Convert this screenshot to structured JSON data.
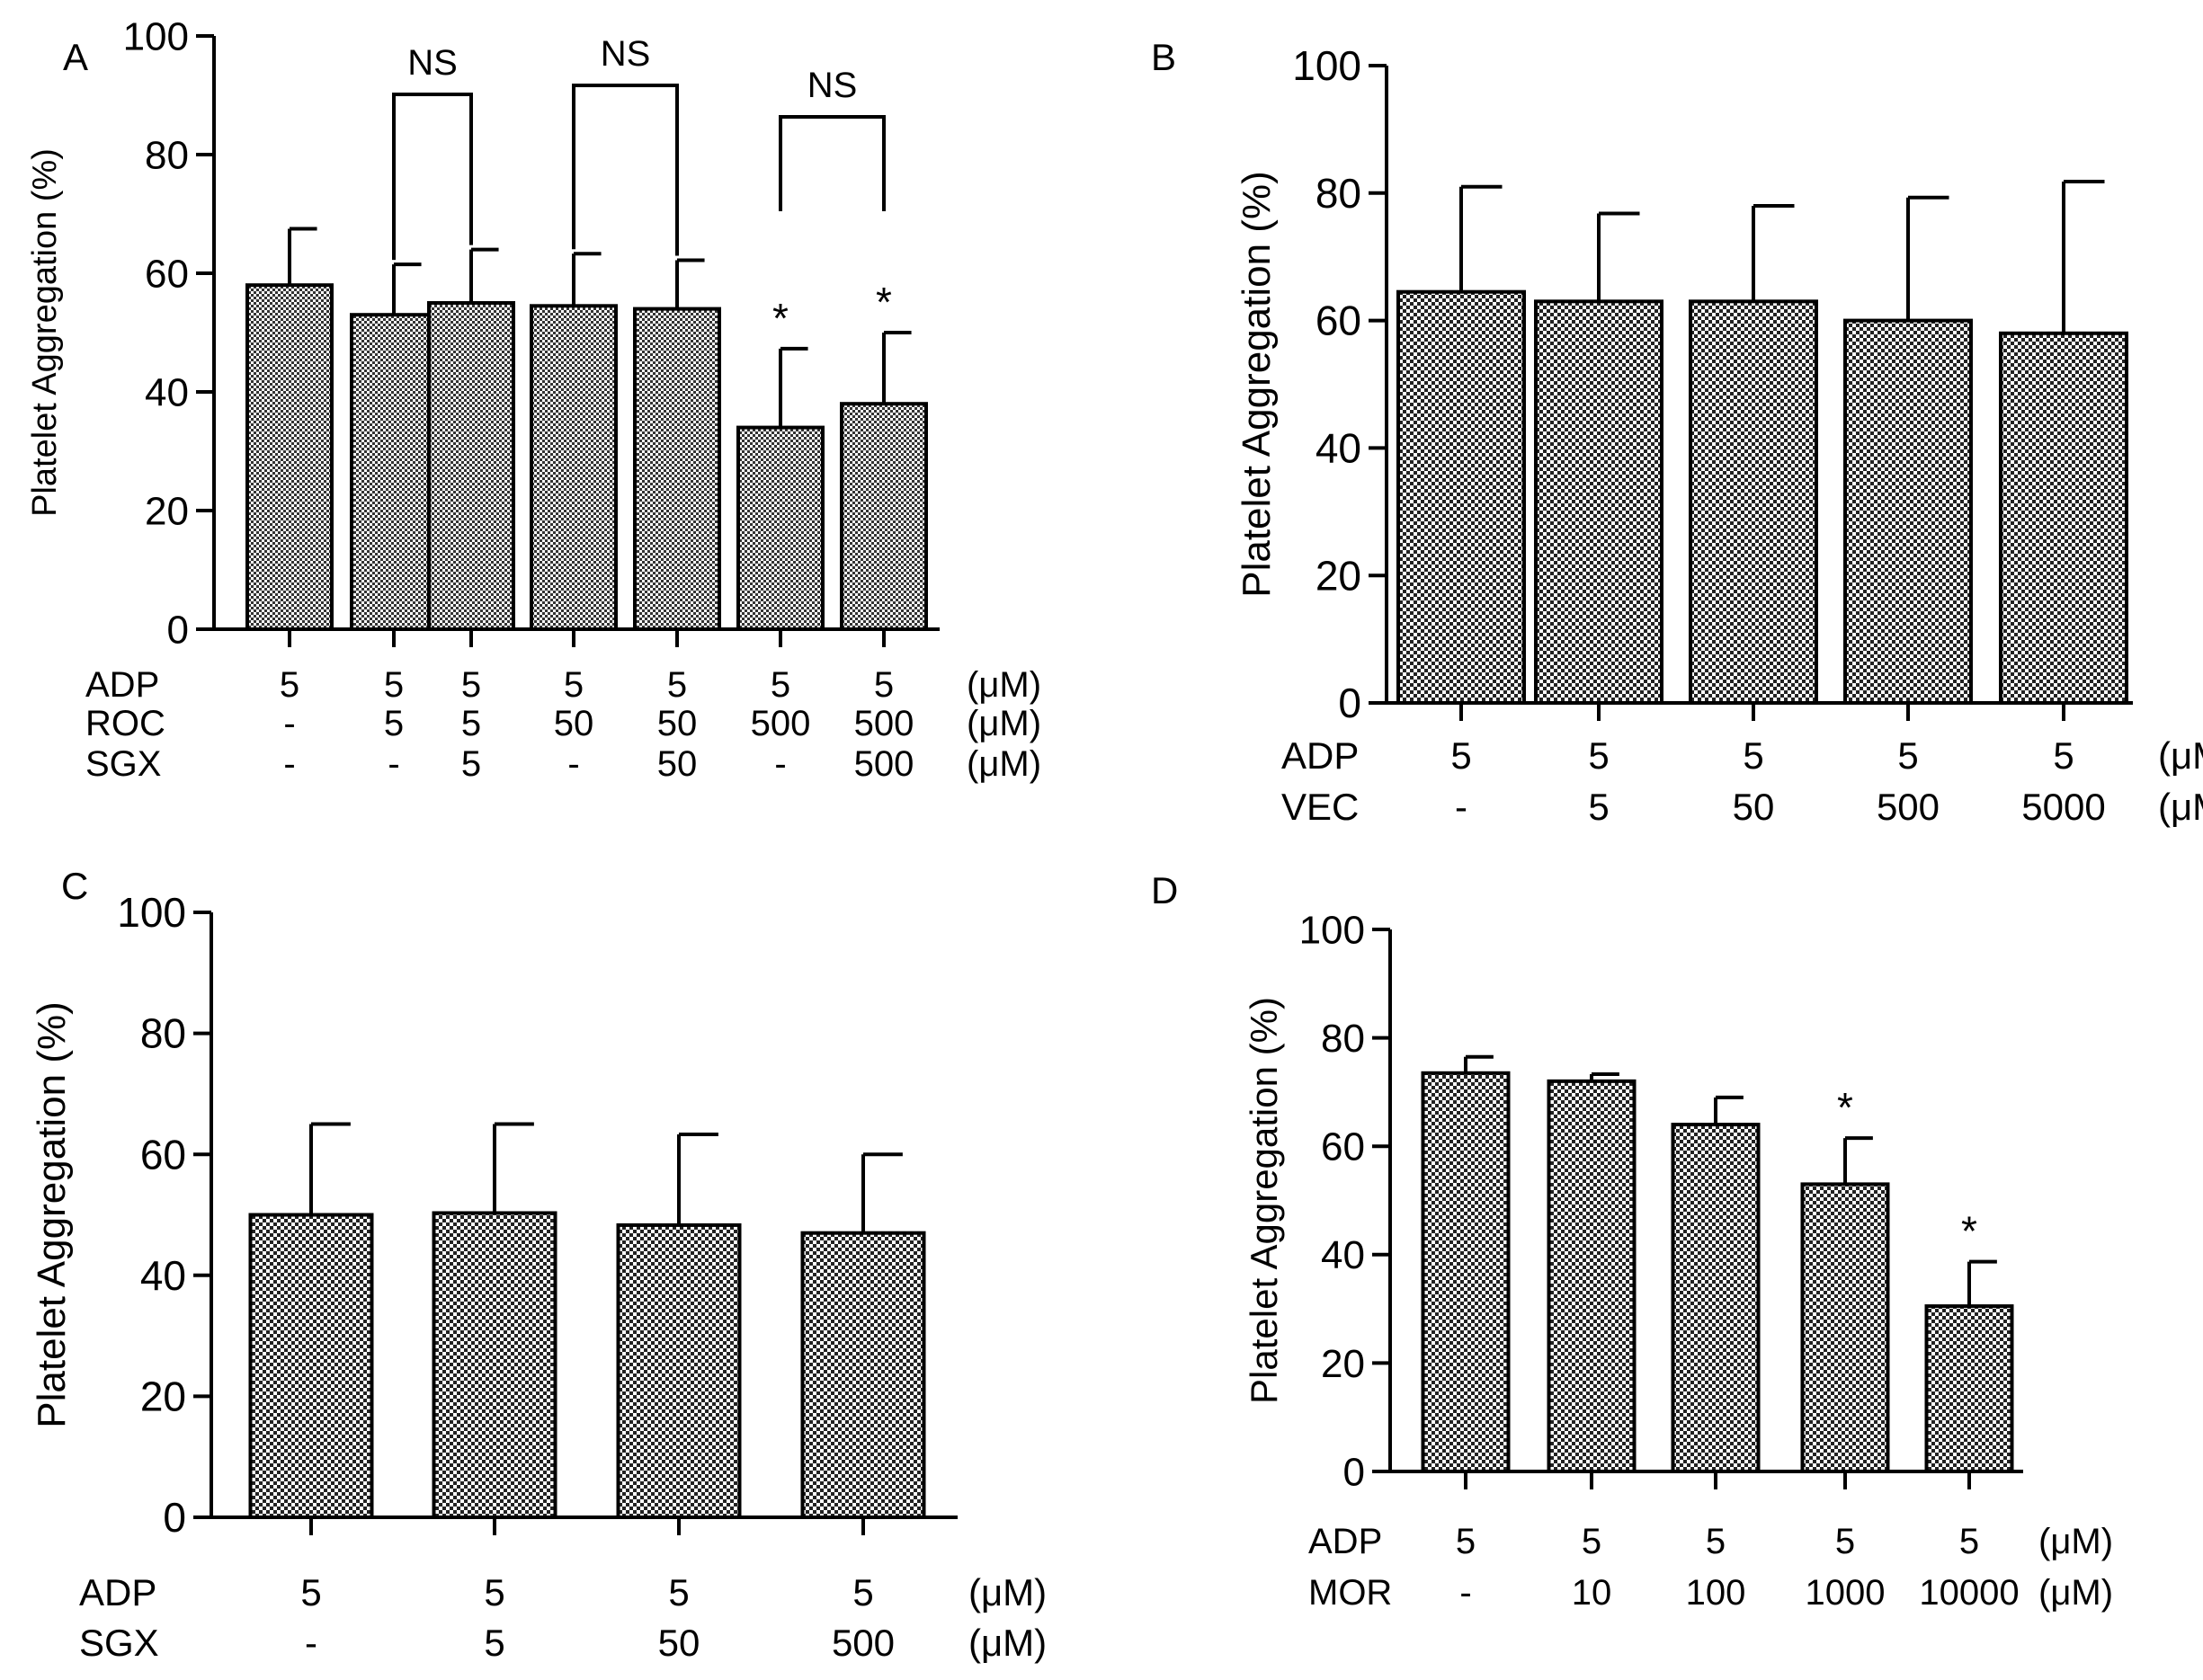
{
  "chart_data": [
    {
      "panel": "A",
      "type": "bar",
      "ylabel": "Platelet Aggregation (%)",
      "ylim": [
        0,
        100
      ],
      "yticks": [
        0,
        20,
        40,
        60,
        80,
        100
      ],
      "values": [
        58,
        53,
        55,
        54.5,
        54,
        34,
        38
      ],
      "errors": [
        9.5,
        8.5,
        9,
        8.8,
        8.2,
        13.3,
        12
      ],
      "sig": [
        "",
        "",
        "",
        "",
        "",
        "*",
        "*"
      ],
      "brackets": [
        {
          "from": 1,
          "to": 2,
          "label": "NS"
        },
        {
          "from": 3,
          "to": 4,
          "label": "NS"
        },
        {
          "from": 5,
          "to": 6,
          "label": "NS"
        }
      ],
      "rows": [
        {
          "label": "ADP",
          "values": [
            "5",
            "5",
            "5",
            "5",
            "5",
            "5",
            "5"
          ],
          "unit": "(μM)"
        },
        {
          "label": "ROC",
          "values": [
            "-",
            "5",
            "5",
            "50",
            "50",
            "500",
            "500"
          ],
          "unit": "(μM)"
        },
        {
          "label": "SGX",
          "values": [
            "-",
            "-",
            "5",
            "-",
            "50",
            "-",
            "500"
          ],
          "unit": "(μM)"
        }
      ]
    },
    {
      "panel": "B",
      "type": "bar",
      "ylabel": "Platelet Aggregation (%)",
      "ylim": [
        0,
        100
      ],
      "yticks": [
        0,
        20,
        40,
        60,
        80,
        100
      ],
      "values": [
        64.5,
        63,
        63,
        60,
        58
      ],
      "errors": [
        16.5,
        13.8,
        15,
        19.3,
        23.8
      ],
      "sig": [
        "",
        "",
        "",
        "",
        ""
      ],
      "brackets": [],
      "rows": [
        {
          "label": "ADP",
          "values": [
            "5",
            "5",
            "5",
            "5",
            "5"
          ],
          "unit": "(μM)"
        },
        {
          "label": "VEC",
          "values": [
            "-",
            "5",
            "50",
            "500",
            "5000"
          ],
          "unit": "(μM)"
        }
      ]
    },
    {
      "panel": "C",
      "type": "bar",
      "ylabel": "Platelet Aggregation (%)",
      "ylim": [
        0,
        100
      ],
      "yticks": [
        0,
        20,
        40,
        60,
        80,
        100
      ],
      "values": [
        50,
        50.3,
        48.3,
        47
      ],
      "errors": [
        15,
        14.7,
        15,
        13
      ],
      "sig": [
        "",
        "",
        "",
        ""
      ],
      "brackets": [],
      "rows": [
        {
          "label": "ADP",
          "values": [
            "5",
            "5",
            "5",
            "5"
          ],
          "unit": "(μM)"
        },
        {
          "label": "SGX",
          "values": [
            "-",
            "5",
            "50",
            "500"
          ],
          "unit": "(μM)"
        }
      ]
    },
    {
      "panel": "D",
      "type": "bar",
      "ylabel": "Platelet Aggregation (%)",
      "ylim": [
        0,
        100
      ],
      "yticks": [
        0,
        20,
        40,
        60,
        80,
        100
      ],
      "values": [
        73.5,
        72,
        64,
        53,
        30.5
      ],
      "errors": [
        3,
        1.3,
        5,
        8.5,
        8.2
      ],
      "sig": [
        "",
        "",
        "",
        "*",
        "*"
      ],
      "brackets": [],
      "rows": [
        {
          "label": "ADP",
          "values": [
            "5",
            "5",
            "5",
            "5",
            "5"
          ],
          "unit": "(μM)"
        },
        {
          "label": "MOR",
          "values": [
            "-",
            "10",
            "100",
            "1000",
            "10000"
          ],
          "unit": "(μM)"
        }
      ]
    }
  ]
}
